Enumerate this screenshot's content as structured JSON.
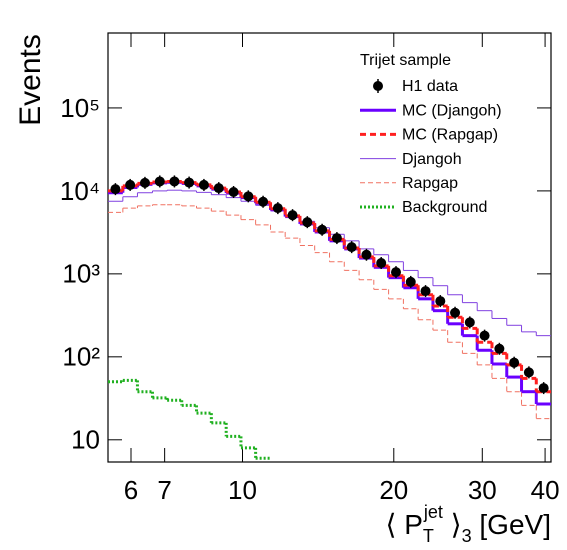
{
  "chart_data": {
    "type": "histogram",
    "y_label": "Events",
    "x_label": {
      "pre": "⟨ P",
      "sub": "T",
      "sup": "jet",
      "post": " ⟩",
      "sub2": "3",
      "unit": " [GeV]"
    },
    "legend_title": "Trijet sample",
    "log_x": true,
    "log_y": true,
    "xlim": [
      5.4,
      41.1
    ],
    "ylim": [
      5.4,
      800000
    ],
    "xticks": [
      6,
      7,
      10,
      20,
      30,
      40
    ],
    "yticks": [
      10,
      {
        "value": 100,
        "label": "10²"
      },
      {
        "value": 1000,
        "label": "10³"
      },
      {
        "value": 10000,
        "label": "10⁴"
      },
      {
        "value": 100000,
        "label": "10⁵"
      }
    ],
    "bins": [
      5.4,
      5.78,
      6.18,
      6.62,
      7.08,
      7.57,
      8.1,
      8.67,
      9.28,
      9.93,
      10.62,
      11.37,
      12.16,
      13.01,
      13.92,
      14.9,
      15.94,
      17.06,
      18.25,
      19.53,
      20.9,
      22.36,
      23.93,
      25.6,
      27.39,
      29.31,
      31.36,
      33.56,
      35.91,
      38.42,
      41.11
    ],
    "series": [
      {
        "name": "H1 data",
        "color": "#000000",
        "style": "points",
        "values": [
          10500,
          11800,
          12500,
          13000,
          13000,
          12600,
          11800,
          10800,
          9700,
          8600,
          7400,
          6200,
          5100,
          4200,
          3400,
          2700,
          2100,
          1700,
          1350,
          1050,
          800,
          620,
          470,
          340,
          260,
          180,
          125,
          85,
          65,
          42
        ]
      },
      {
        "name": "MC (Djangoh)",
        "color": "#6a00ff",
        "style": "solid-thick",
        "values": [
          9500,
          11000,
          12000,
          12500,
          12700,
          12300,
          11500,
          10500,
          9400,
          8300,
          7100,
          5900,
          4900,
          4000,
          3200,
          2500,
          2000,
          1550,
          1200,
          900,
          680,
          500,
          360,
          250,
          180,
          120,
          82,
          57,
          38,
          27
        ]
      },
      {
        "name": "MC (Rapgap)",
        "color": "#ff2020",
        "style": "dashed-thick",
        "values": [
          10000,
          11500,
          12300,
          12800,
          13000,
          12600,
          11800,
          10800,
          9700,
          8500,
          7300,
          6100,
          5000,
          4100,
          3300,
          2600,
          2050,
          1600,
          1250,
          950,
          730,
          560,
          410,
          300,
          220,
          150,
          110,
          80,
          55,
          38
        ]
      },
      {
        "name": "Djangoh",
        "color": "#8040e0",
        "style": "solid-thin",
        "values": [
          7500,
          8500,
          9500,
          10000,
          10200,
          10000,
          9600,
          9000,
          8300,
          7500,
          6700,
          5800,
          5000,
          4300,
          3600,
          3000,
          2500,
          2000,
          1700,
          1400,
          1100,
          900,
          720,
          560,
          450,
          360,
          290,
          240,
          200,
          180
        ]
      },
      {
        "name": "Rapgap",
        "color": "#f07060",
        "style": "dashed-thin",
        "values": [
          5500,
          6200,
          6600,
          6800,
          6800,
          6600,
          6200,
          5700,
          5100,
          4500,
          3900,
          3200,
          2700,
          2200,
          1800,
          1400,
          1100,
          850,
          650,
          500,
          380,
          280,
          210,
          150,
          110,
          80,
          55,
          38,
          26,
          18
        ]
      },
      {
        "name": "Background",
        "color": "#20b020",
        "style": "dotted",
        "values": [
          50,
          52,
          38,
          32,
          30,
          26,
          21,
          16,
          11,
          8,
          6,
          null,
          null,
          null,
          null,
          null,
          null,
          null,
          null,
          null,
          null,
          null,
          null,
          null,
          null,
          null,
          null,
          null,
          null,
          null
        ]
      }
    ]
  }
}
